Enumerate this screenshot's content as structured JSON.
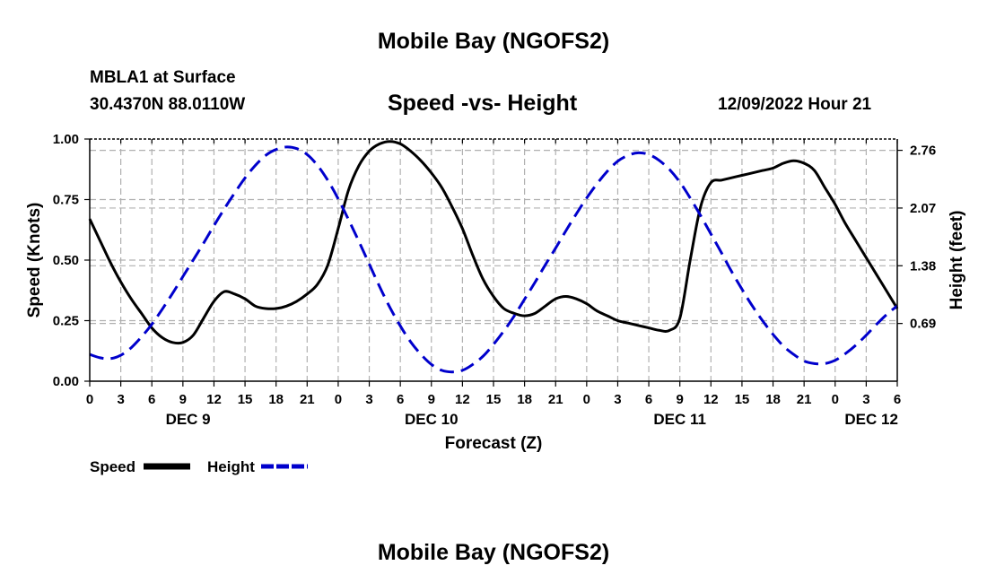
{
  "header": {
    "title": "Mobile Bay (NGOFS2)",
    "station": "MBLA1 at Surface",
    "coords": "30.4370N  88.0110W",
    "subtitle": "Speed -vs- Height",
    "datetime": "12/09/2022 Hour 21"
  },
  "footer": {
    "title": "Mobile Bay (NGOFS2)"
  },
  "colors": {
    "speed": "#000000",
    "height": "#0000cc",
    "grid": "#b0b0b0"
  },
  "chart_data": {
    "type": "line",
    "title": "Speed -vs- Height",
    "xlabel": "Forecast (Z)",
    "ylabel": "Speed (Knots)",
    "ylabel_right": "Height (feet)",
    "xlim_hours": [
      0,
      78
    ],
    "x_tick_labels": [
      "0",
      "3",
      "6",
      "9",
      "12",
      "15",
      "18",
      "21",
      "0",
      "3",
      "6",
      "9",
      "12",
      "15",
      "18",
      "21",
      "0",
      "3",
      "6",
      "9",
      "12",
      "15",
      "18",
      "21",
      "0",
      "3",
      "6"
    ],
    "day_labels": [
      {
        "label": "DEC 9",
        "hour": 9.5
      },
      {
        "label": "DEC 10",
        "hour": 33
      },
      {
        "label": "DEC 11",
        "hour": 57
      },
      {
        "label": "DEC 12",
        "hour": 75.5
      }
    ],
    "ylim_left": [
      0,
      1.0
    ],
    "y_ticks_left": [
      "0.00",
      "0.25",
      "0.50",
      "0.75",
      "1.00"
    ],
    "ylim_right": [
      0,
      2.895
    ],
    "y_ticks_right": [
      "0.69",
      "1.38",
      "2.07",
      "2.76"
    ],
    "grid": true,
    "series": [
      {
        "name": "Speed",
        "axis": "left",
        "style": "solid",
        "x": [
          0,
          1,
          2,
          3,
          4,
          5,
          6,
          7,
          8,
          9,
          10,
          11,
          12,
          13,
          14,
          15,
          16,
          17,
          18,
          19,
          20,
          21,
          22,
          23,
          24,
          25,
          26,
          27,
          28,
          29,
          30,
          31,
          32,
          33,
          34,
          35,
          36,
          37,
          38,
          39,
          40,
          41,
          42,
          43,
          44,
          45,
          46,
          47,
          48,
          49,
          50,
          51,
          52,
          53,
          54,
          55,
          56,
          57,
          58,
          59,
          60,
          61,
          62,
          63,
          64,
          65,
          66,
          67,
          68,
          69,
          70,
          71,
          72,
          73,
          74,
          75,
          76,
          77,
          78
        ],
        "values": [
          0.67,
          0.58,
          0.49,
          0.41,
          0.34,
          0.28,
          0.22,
          0.18,
          0.16,
          0.16,
          0.19,
          0.26,
          0.33,
          0.37,
          0.36,
          0.34,
          0.31,
          0.3,
          0.3,
          0.31,
          0.33,
          0.36,
          0.4,
          0.48,
          0.63,
          0.79,
          0.89,
          0.95,
          0.98,
          0.99,
          0.98,
          0.95,
          0.91,
          0.86,
          0.8,
          0.72,
          0.63,
          0.52,
          0.42,
          0.35,
          0.3,
          0.28,
          0.27,
          0.28,
          0.31,
          0.34,
          0.35,
          0.34,
          0.32,
          0.29,
          0.27,
          0.25,
          0.24,
          0.23,
          0.22,
          0.21,
          0.21,
          0.26,
          0.5,
          0.72,
          0.82,
          0.83,
          0.84,
          0.85,
          0.86,
          0.87,
          0.88,
          0.9,
          0.91,
          0.9,
          0.87,
          0.8,
          0.73,
          0.65,
          0.58,
          0.51,
          0.44,
          0.37,
          0.3
        ]
      },
      {
        "name": "Height",
        "axis": "right",
        "style": "dashed",
        "x": [
          0,
          1,
          2,
          3,
          4,
          5,
          6,
          7,
          8,
          9,
          10,
          11,
          12,
          13,
          14,
          15,
          16,
          17,
          18,
          19,
          20,
          21,
          22,
          23,
          24,
          25,
          26,
          27,
          28,
          29,
          30,
          31,
          32,
          33,
          34,
          35,
          36,
          37,
          38,
          39,
          40,
          41,
          42,
          43,
          44,
          45,
          46,
          47,
          48,
          49,
          50,
          51,
          52,
          53,
          54,
          55,
          56,
          57,
          58,
          59,
          60,
          61,
          62,
          63,
          64,
          65,
          66,
          67,
          68,
          69,
          70,
          71,
          72,
          73,
          74,
          75,
          76,
          77,
          78
        ],
        "values": [
          0.32,
          0.28,
          0.27,
          0.31,
          0.4,
          0.53,
          0.68,
          0.86,
          1.05,
          1.25,
          1.45,
          1.65,
          1.86,
          2.06,
          2.25,
          2.43,
          2.58,
          2.7,
          2.77,
          2.8,
          2.78,
          2.71,
          2.58,
          2.4,
          2.18,
          1.93,
          1.67,
          1.4,
          1.13,
          0.88,
          0.66,
          0.47,
          0.32,
          0.2,
          0.13,
          0.11,
          0.13,
          0.2,
          0.3,
          0.44,
          0.6,
          0.78,
          0.98,
          1.18,
          1.39,
          1.59,
          1.8,
          2.0,
          2.19,
          2.36,
          2.51,
          2.63,
          2.7,
          2.73,
          2.71,
          2.64,
          2.53,
          2.38,
          2.19,
          1.98,
          1.76,
          1.54,
          1.31,
          1.1,
          0.9,
          0.72,
          0.56,
          0.42,
          0.32,
          0.24,
          0.21,
          0.21,
          0.25,
          0.33,
          0.43,
          0.55,
          0.68,
          0.8,
          0.9
        ]
      }
    ],
    "legend": [
      {
        "label": "Speed",
        "style": "solid"
      },
      {
        "label": "Height",
        "style": "dashed"
      }
    ]
  }
}
